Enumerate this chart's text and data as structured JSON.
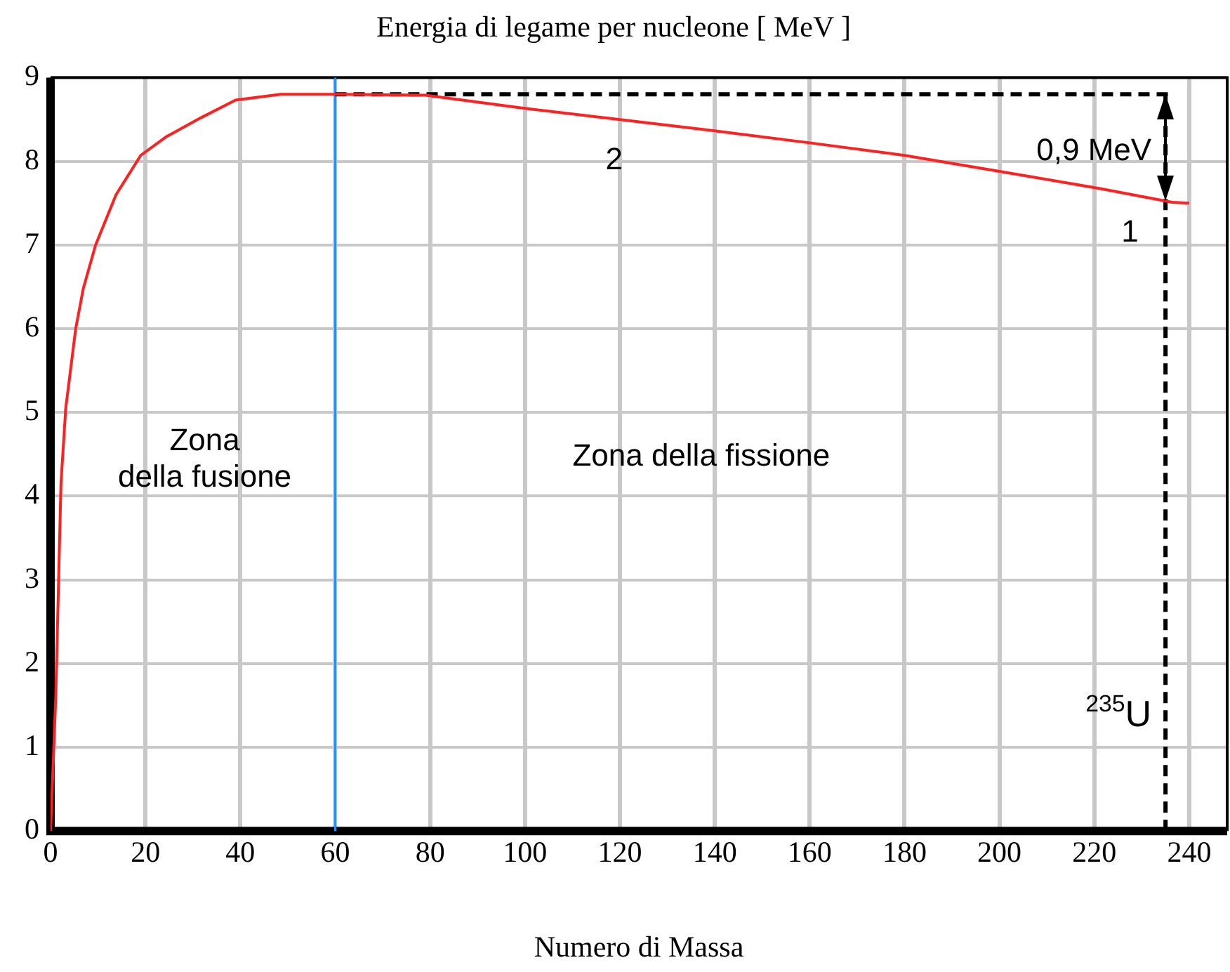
{
  "chart_data": {
    "type": "line",
    "title": "Energia di legame per nucleone [ MeV ]",
    "xlabel": "Numero di Massa",
    "x": [
      0,
      1.1,
      2.2,
      3.2,
      5.3,
      6.9,
      9.5,
      13.8,
      19,
      24.3,
      31.7,
      39,
      48.5,
      60,
      79,
      98.8,
      119.7,
      140.5,
      160,
      180,
      200,
      221.6,
      236.4,
      240
    ],
    "series": [
      {
        "color": "#ff2020",
        "values": [
          0,
          1.6,
          4.16,
          5.05,
          6.0,
          6.48,
          7.0,
          7.6,
          8.07,
          8.29,
          8.52,
          8.73,
          8.8,
          8.8,
          8.79,
          8.64,
          8.5,
          8.36,
          8.22,
          8.07,
          7.88,
          7.67,
          7.51,
          7.5
        ]
      }
    ],
    "xlim": [
      0,
      248
    ],
    "xticks": [
      0,
      20,
      40,
      60,
      80,
      100,
      120,
      140,
      160,
      180,
      200,
      220,
      240
    ],
    "ylim": [
      0,
      9
    ],
    "yticks": [
      0,
      1,
      2,
      3,
      4,
      5,
      6,
      7,
      8,
      9
    ],
    "grid": true,
    "legend": false,
    "marker": "none",
    "line_style": "solid",
    "ref_lines": [
      {
        "axis": "x",
        "value": 60,
        "color": "#1e90ff",
        "line_style": "solid"
      },
      {
        "axis": "x",
        "value": 235,
        "color": "#000000",
        "line_style": "dashed",
        "label": "$^{235}$U"
      },
      {
        "axis": "y",
        "value": 8.8,
        "color": "#000000",
        "line_style": "dashed"
      }
    ],
    "annotations": [
      {
        "text": "0,9 MeV",
        "x": 235,
        "y": 8.15
      },
      "2",
      {
        "text": "1",
        "x": 236.4,
        "y": 7.51
      },
      "Zona della fusione",
      "Zona della fissione"
    ]
  }
}
